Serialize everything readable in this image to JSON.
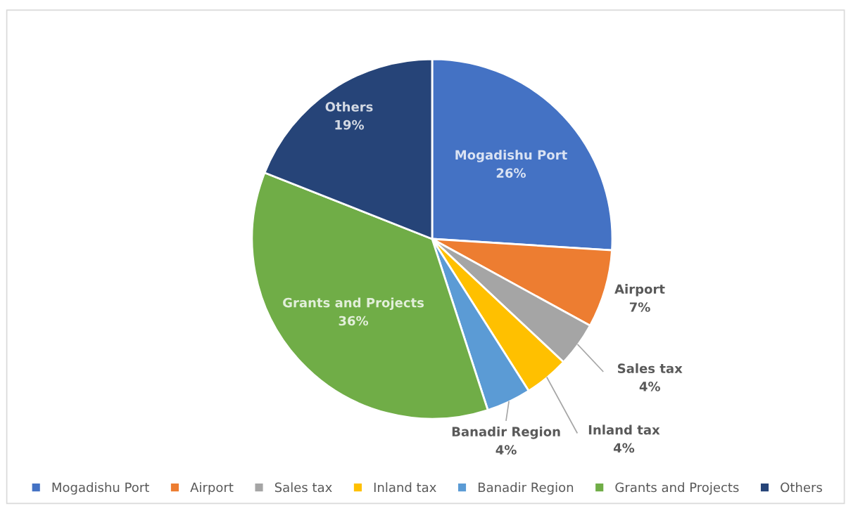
{
  "chart_data": {
    "type": "pie",
    "categories": [
      "Mogadishu Port",
      "Airport",
      "Sales tax",
      "Inland tax",
      "Banadir Region",
      "Grants and Projects",
      "Others"
    ],
    "values": [
      26,
      7,
      4,
      4,
      4,
      36,
      19
    ],
    "value_labels": [
      "26%",
      "7%",
      "4%",
      "4%",
      "4%",
      "36%",
      "19%"
    ],
    "colors": [
      "#4472c4",
      "#ed7d31",
      "#a5a5a5",
      "#ffc000",
      "#5b9bd5",
      "#70ad47",
      "#264478"
    ],
    "legend": "bottom"
  }
}
